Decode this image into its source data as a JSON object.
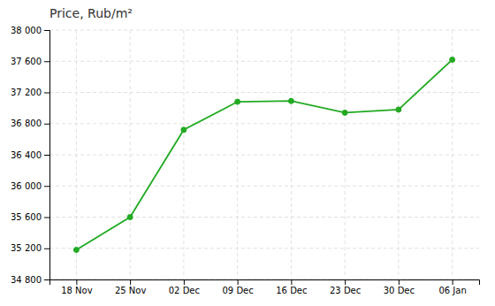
{
  "chart_data": {
    "type": "line",
    "title": "Price, Rub/m²",
    "categories": [
      "18 Nov",
      "25 Nov",
      "02 Dec",
      "09 Dec",
      "16 Dec",
      "23 Dec",
      "30 Dec",
      "06 Jan"
    ],
    "values": [
      35180,
      35600,
      36720,
      37080,
      37090,
      36940,
      36980,
      37620
    ],
    "color": "#22aa22",
    "marker": "circle",
    "ylim": [
      34800,
      38000
    ],
    "yticks": [
      {
        "value": 34800,
        "label": "34 800"
      },
      {
        "value": 35200,
        "label": "35 200"
      },
      {
        "value": 35600,
        "label": "35 600"
      },
      {
        "value": 36000,
        "label": "36 000"
      },
      {
        "value": 36400,
        "label": "36 400"
      },
      {
        "value": 36800,
        "label": "36 800"
      },
      {
        "value": 37200,
        "label": "37 200"
      },
      {
        "value": 37600,
        "label": "37 600"
      },
      {
        "value": 38000,
        "label": "38 000"
      }
    ],
    "grid": true
  }
}
